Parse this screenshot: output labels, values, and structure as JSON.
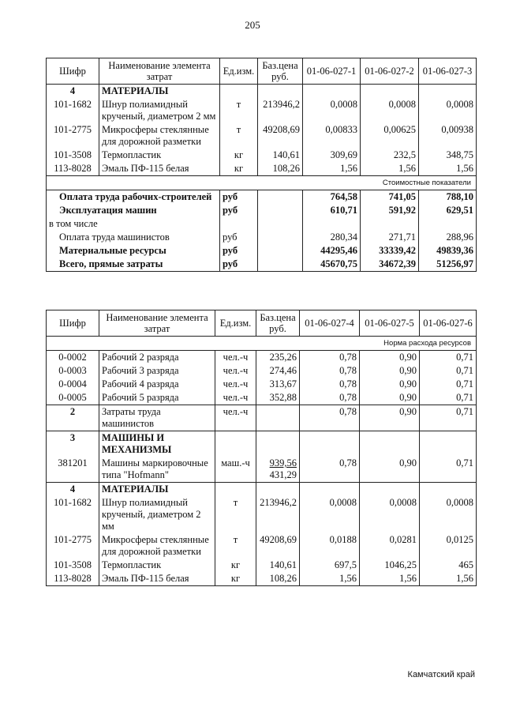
{
  "page_number": "205",
  "table1": {
    "header": [
      "Шифр",
      "Наименование элемента затрат",
      "Ед.изм.",
      "Баз.цена руб.",
      "01-06-027-1",
      "01-06-027-2",
      "01-06-027-3"
    ],
    "rows": [
      [
        "4",
        "МАТЕРИАЛЫ",
        null,
        null,
        null,
        null,
        null
      ],
      [
        "101-1682",
        "Шнур полиамидный крученый, диаметром 2 мм",
        "т",
        "213946,2",
        "0,0008",
        "0,0008",
        "0,0008"
      ],
      [
        "101-2775",
        "Микросферы стеклянные для дорожной разметки",
        "т",
        "49208,69",
        "0,00833",
        "0,00625",
        "0,00938"
      ],
      [
        "101-3508",
        "Термопластик",
        "кг",
        "140,61",
        "309,69",
        "232,5",
        "348,75"
      ],
      [
        "113-8028",
        "Эмаль ПФ-115 белая",
        "кг",
        "108,26",
        "1,56",
        "1,56",
        "1,56"
      ]
    ],
    "note": "Стоимостные показатели",
    "totals": [
      [
        "Оплата труда рабочих-строителей",
        "руб",
        null,
        "764,58",
        "741,05",
        "788,10"
      ],
      [
        "Эксплуатация машин",
        "руб",
        null,
        "610,71",
        "591,92",
        "629,51"
      ],
      [
        "в том числе",
        null,
        null,
        null,
        null,
        null
      ],
      [
        "Оплата труда машинистов",
        "руб",
        null,
        "280,34",
        "271,71",
        "288,96"
      ],
      [
        "Материальные ресурсы",
        "руб",
        null,
        "44295,46",
        "33339,42",
        "49839,36"
      ],
      [
        "Всего, прямые затраты",
        "руб",
        null,
        "45670,75",
        "34672,39",
        "51256,97"
      ]
    ]
  },
  "table2": {
    "header": [
      "Шифр",
      "Наименование элемента затрат",
      "Ед.изм.",
      "Баз.цена руб.",
      "01-06-027-4",
      "01-06-027-5",
      "01-06-027-6"
    ],
    "note": "Норма расхода ресурсов",
    "rows": [
      [
        "0-0002",
        "Рабочий 2 разряда",
        "чел.-ч",
        "235,26",
        "0,78",
        "0,90",
        "0,71"
      ],
      [
        "0-0003",
        "Рабочий 3 разряда",
        "чел.-ч",
        "274,46",
        "0,78",
        "0,90",
        "0,71"
      ],
      [
        "0-0004",
        "Рабочий 4 разряда",
        "чел.-ч",
        "313,67",
        "0,78",
        "0,90",
        "0,71"
      ],
      [
        "0-0005",
        "Рабочий 5 разряда",
        "чел.-ч",
        "352,88",
        "0,78",
        "0,90",
        "0,71"
      ],
      [
        "2",
        "Затраты труда машинистов",
        "чел.-ч",
        null,
        "0,78",
        "0,90",
        "0,71"
      ],
      [
        "3",
        "МАШИНЫ И МЕХАНИЗМЫ",
        null,
        null,
        null,
        null,
        null
      ],
      [
        "381201",
        "Машины маркировочные типа \"Hofmann\"",
        "маш.-ч",
        [
          "939,56",
          "431,29"
        ],
        "0,78",
        "0,90",
        "0,71"
      ],
      [
        "4",
        "МАТЕРИАЛЫ",
        null,
        null,
        null,
        null,
        null
      ],
      [
        "101-1682",
        "Шнур полиамидный крученый, диаметром 2 мм",
        "т",
        "213946,2",
        "0,0008",
        "0,0008",
        "0,0008"
      ],
      [
        "101-2775",
        "Микросферы стеклянные для дорожной разметки",
        "т",
        "49208,69",
        "0,0188",
        "0,0281",
        "0,0125"
      ],
      [
        "101-3508",
        "Термопластик",
        "кг",
        "140,61",
        "697,5",
        "1046,25",
        "465"
      ],
      [
        "113-8028",
        "Эмаль ПФ-115 белая",
        "кг",
        "108,26",
        "1,56",
        "1,56",
        "1,56"
      ]
    ]
  },
  "footer": "Камчатский край"
}
